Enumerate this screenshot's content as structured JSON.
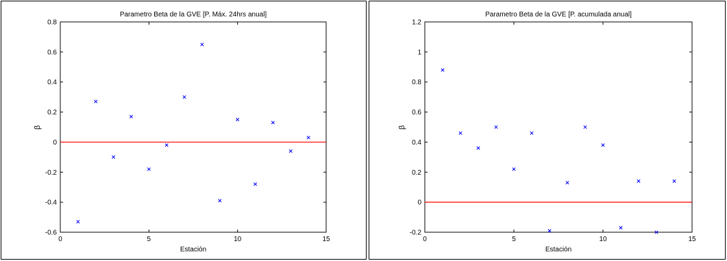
{
  "chart_data": [
    {
      "type": "scatter",
      "title": "Parametro Beta de la GVE [P. Máx. 24hrs anual]",
      "xlabel": "Estación",
      "ylabel": "β",
      "xlim": [
        0,
        15
      ],
      "ylim": [
        -0.6,
        0.8
      ],
      "xticks": [
        0,
        5,
        10,
        15
      ],
      "xtick_labels": [
        "0",
        "5",
        "10",
        "15"
      ],
      "yticks": [
        -0.6,
        -0.4,
        -0.2,
        0,
        0.2,
        0.4,
        0.6,
        0.8
      ],
      "ytick_labels": [
        "-0.6",
        "-0.4",
        "-0.2",
        "0",
        "0.2",
        "0.4",
        "0.6",
        "0.8"
      ],
      "grid": false,
      "series": [
        {
          "marker": "x",
          "color": "#0000ff",
          "x": [
            1,
            2,
            3,
            4,
            5,
            6,
            7,
            8,
            9,
            10,
            11,
            12,
            13,
            14
          ],
          "y": [
            -0.53,
            0.27,
            -0.1,
            0.17,
            -0.18,
            -0.02,
            0.3,
            0.65,
            -0.39,
            0.15,
            -0.28,
            0.13,
            -0.06,
            0.03
          ]
        }
      ],
      "reference_line": {
        "y": 0,
        "color": "#ff0000"
      }
    },
    {
      "type": "scatter",
      "title": "Parametro Beta de la GVE [P. acumulada anual]",
      "xlabel": "Estación",
      "ylabel": "β",
      "xlim": [
        0,
        15
      ],
      "ylim": [
        -0.2,
        1.2
      ],
      "xticks": [
        0,
        5,
        10,
        15
      ],
      "xtick_labels": [
        "0",
        "5",
        "10",
        "15"
      ],
      "yticks": [
        -0.2,
        0,
        0.2,
        0.4,
        0.6,
        0.8,
        1,
        1.2
      ],
      "ytick_labels": [
        "-0.2",
        "0",
        "0.2",
        "0.4",
        "0.6",
        "0.8",
        "1",
        "1.2"
      ],
      "grid": false,
      "series": [
        {
          "marker": "x",
          "color": "#0000ff",
          "x": [
            1,
            2,
            3,
            4,
            5,
            6,
            7,
            8,
            9,
            10,
            11,
            12,
            13,
            14
          ],
          "y": [
            0.88,
            0.46,
            0.36,
            0.5,
            0.22,
            0.46,
            -0.19,
            0.13,
            0.5,
            0.38,
            -0.17,
            0.14,
            -0.2,
            0.14
          ]
        }
      ],
      "reference_line": {
        "y": 0,
        "color": "#ff0000"
      }
    }
  ]
}
